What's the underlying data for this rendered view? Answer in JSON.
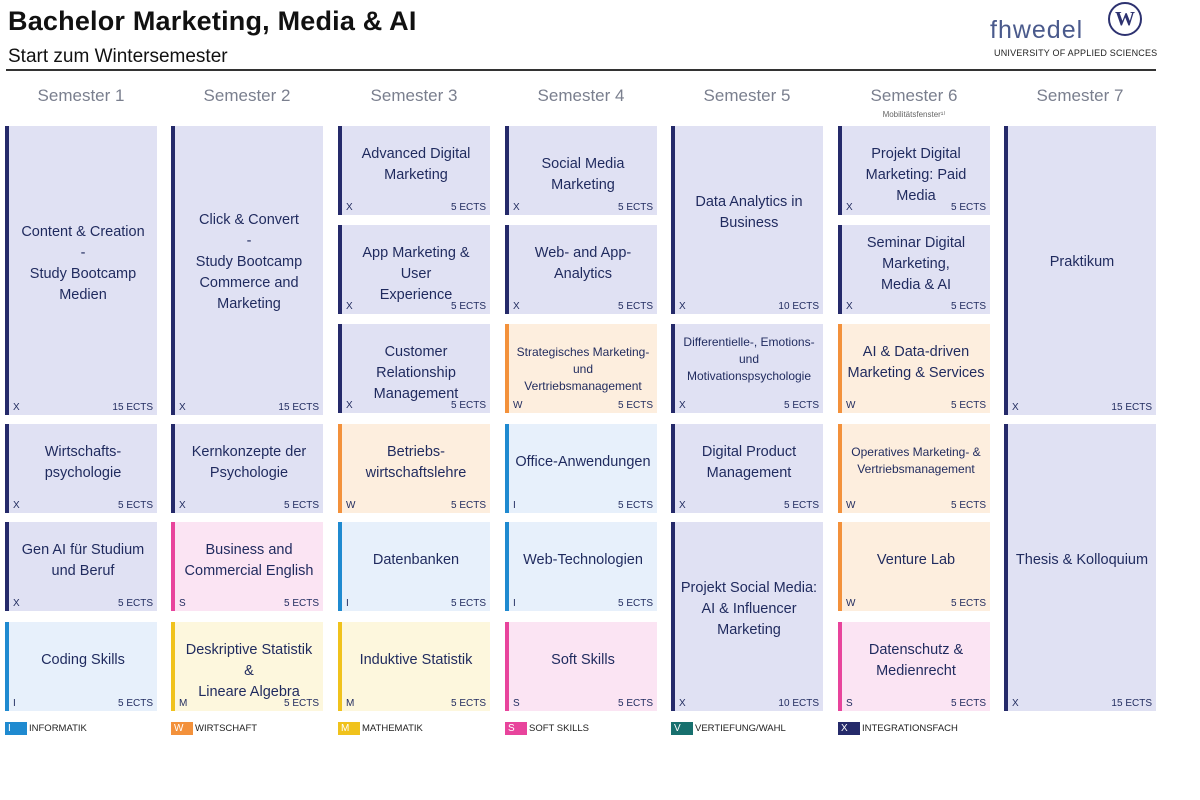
{
  "header": {
    "title": "Bachelor Marketing, Media & AI",
    "subtitle": "Start zum Wintersemester",
    "logo_text": "fhwedel",
    "logo_badge": "W",
    "logo_sub": "UNIVERSITY OF APPLIED SCIENCES"
  },
  "semesters": [
    {
      "label": "Semester 1"
    },
    {
      "label": "Semester 2"
    },
    {
      "label": "Semester 3"
    },
    {
      "label": "Semester 4"
    },
    {
      "label": "Semester 5"
    },
    {
      "label": "Semester 6",
      "note": "Mobilitätsfenster¹⁾"
    },
    {
      "label": "Semester 7"
    }
  ],
  "modules": [
    {
      "sem": 1,
      "name": "Content & Creation\n-\nStudy Bootcamp\nMedien",
      "code": "X",
      "ects": "15 ECTS"
    },
    {
      "sem": 1,
      "name": "Wirtschafts-\npsychologie",
      "code": "X",
      "ects": "5 ECTS"
    },
    {
      "sem": 1,
      "name": "Gen AI für Studium\nund Beruf",
      "code": "X",
      "ects": "5 ECTS"
    },
    {
      "sem": 1,
      "name": "Coding Skills",
      "code": "I",
      "ects": "5 ECTS"
    },
    {
      "sem": 2,
      "name": "Click & Convert\n-\nStudy Bootcamp\nCommerce and\nMarketing",
      "code": "X",
      "ects": "15 ECTS"
    },
    {
      "sem": 2,
      "name": "Kernkonzepte der\nPsychologie",
      "code": "X",
      "ects": "5 ECTS"
    },
    {
      "sem": 2,
      "name": "Business and\nCommercial English",
      "code": "S",
      "ects": "5 ECTS"
    },
    {
      "sem": 2,
      "name": "Deskriptive Statistik &\nLineare Algebra",
      "code": "M",
      "ects": "5 ECTS"
    },
    {
      "sem": 3,
      "name": "Advanced Digital\nMarketing",
      "code": "X",
      "ects": "5 ECTS"
    },
    {
      "sem": 3,
      "name": "App Marketing & User\nExperience",
      "code": "X",
      "ects": "5 ECTS"
    },
    {
      "sem": 3,
      "name": "Customer Relationship\nManagement",
      "code": "X",
      "ects": "5 ECTS"
    },
    {
      "sem": 3,
      "name": "Betriebs-\nwirtschaftslehre",
      "code": "W",
      "ects": "5 ECTS"
    },
    {
      "sem": 3,
      "name": "Datenbanken",
      "code": "I",
      "ects": "5 ECTS"
    },
    {
      "sem": 3,
      "name": "Induktive Statistik",
      "code": "M",
      "ects": "5 ECTS"
    },
    {
      "sem": 4,
      "name": "Social Media Marketing",
      "code": "X",
      "ects": "5 ECTS"
    },
    {
      "sem": 4,
      "name": "Web- and App-\nAnalytics",
      "code": "X",
      "ects": "5 ECTS"
    },
    {
      "sem": 4,
      "name": "Strategisches Marketing-\nund Vertriebsmanagement",
      "code": "W",
      "ects": "5 ECTS"
    },
    {
      "sem": 4,
      "name": "Office-Anwendungen",
      "code": "I",
      "ects": "5 ECTS"
    },
    {
      "sem": 4,
      "name": "Web-Technologien",
      "code": "I",
      "ects": "5 ECTS"
    },
    {
      "sem": 4,
      "name": "Soft Skills",
      "code": "S",
      "ects": "5 ECTS"
    },
    {
      "sem": 5,
      "name": "Data Analytics in\nBusiness",
      "code": "X",
      "ects": "10 ECTS"
    },
    {
      "sem": 5,
      "name": "Differentielle-, Emotions-\nund\nMotivationspsychologie",
      "code": "X",
      "ects": "5 ECTS"
    },
    {
      "sem": 5,
      "name": "Digital Product\nManagement",
      "code": "X",
      "ects": "5 ECTS"
    },
    {
      "sem": 5,
      "name": "Projekt Social Media:\nAI & Influencer\nMarketing",
      "code": "X",
      "ects": "10 ECTS"
    },
    {
      "sem": 6,
      "name": "Projekt Digital\nMarketing: Paid Media",
      "code": "X",
      "ects": "5 ECTS"
    },
    {
      "sem": 6,
      "name": "Seminar Digital\nMarketing,\nMedia & AI",
      "code": "X",
      "ects": "5 ECTS"
    },
    {
      "sem": 6,
      "name": "AI & Data-driven\nMarketing & Services",
      "code": "W",
      "ects": "5 ECTS"
    },
    {
      "sem": 6,
      "name": "Operatives Marketing- &\nVertriebsmanagement",
      "code": "W",
      "ects": "5 ECTS"
    },
    {
      "sem": 6,
      "name": "Venture Lab",
      "code": "W",
      "ects": "5 ECTS"
    },
    {
      "sem": 6,
      "name": "Datenschutz &\nMedienrecht",
      "code": "S",
      "ects": "5 ECTS"
    },
    {
      "sem": 7,
      "name": "Praktikum",
      "code": "X",
      "ects": "15 ECTS"
    },
    {
      "sem": 7,
      "name": "Thesis & Kolloquium",
      "code": "X",
      "ects": "15 ECTS"
    }
  ],
  "legend": [
    {
      "code": "I",
      "label": "INFORMATIK",
      "color": "#1f8ad0"
    },
    {
      "code": "W",
      "label": "WIRTSCHAFT",
      "color": "#f3913b"
    },
    {
      "code": "M",
      "label": "MATHEMATIK",
      "color": "#f0c21c"
    },
    {
      "code": "S",
      "label": "SOFT SKILLS",
      "color": "#e8449c"
    },
    {
      "code": "V",
      "label": "VERTIEFUNG/WAHL",
      "color": "#17706e"
    },
    {
      "code": "X",
      "label": "INTEGRATIONSFACH",
      "color": "#252a6a"
    }
  ]
}
